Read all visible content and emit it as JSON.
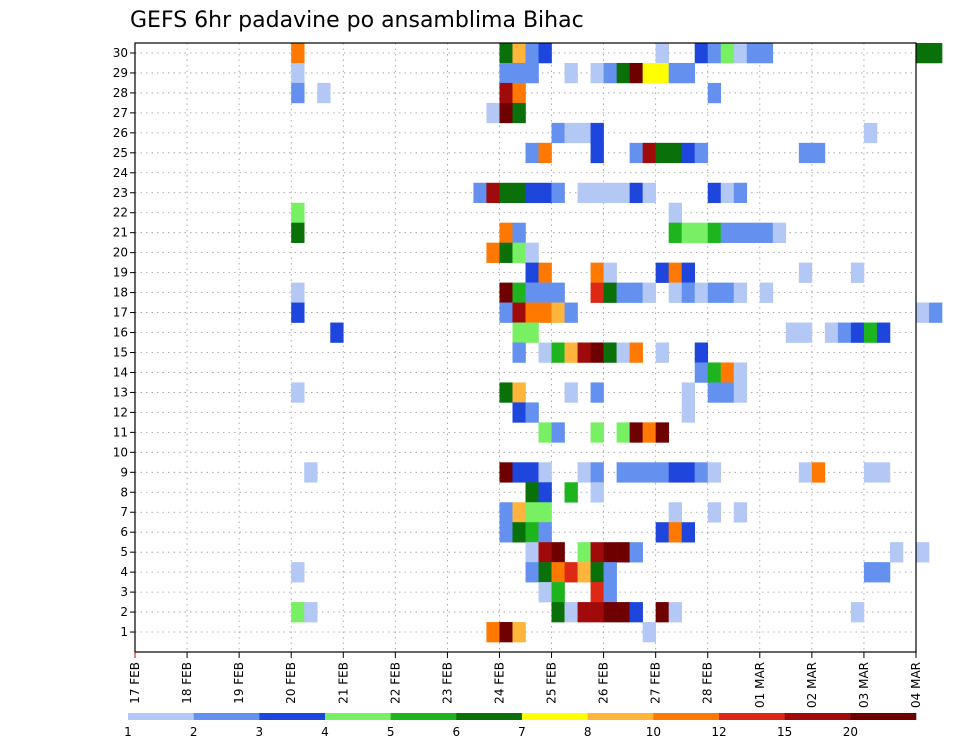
{
  "chart_data": {
    "type": "heatmap",
    "title": "GEFS 6hr padavine po ansamblima Bihac",
    "x_ticks": [
      "17 FEB",
      "18 FEB",
      "19 FEB",
      "20 FEB",
      "21 FEB",
      "22 FEB",
      "23 FEB",
      "24 FEB",
      "25 FEB",
      "26 FEB",
      "27 FEB",
      "28 FEB",
      "01 MAR",
      "02 MAR",
      "03 MAR",
      "04 MAR"
    ],
    "y_ticks": [
      "1",
      "2",
      "3",
      "4",
      "5",
      "6",
      "7",
      "8",
      "9",
      "10",
      "11",
      "12",
      "13",
      "14",
      "15",
      "16",
      "17",
      "18",
      "19",
      "20",
      "21",
      "22",
      "23",
      "24",
      "25",
      "26",
      "27",
      "28",
      "29",
      "30"
    ],
    "members_range": [
      1,
      30
    ],
    "time_step_hours": 6,
    "color_scale": {
      "labels": [
        "1",
        "2",
        "3",
        "4",
        "5",
        "6",
        "7",
        "8",
        "10",
        "12",
        "15",
        "20"
      ],
      "colors": [
        "#b4c8f5",
        "#6491f0",
        "#1e46dc",
        "#78f064",
        "#1eb41e",
        "#0a700a",
        "#ffff00",
        "#ffb43c",
        "#ff7800",
        "#dc2814",
        "#a00a0a",
        "#6e0000"
      ]
    },
    "grid": true,
    "cells": [
      [
        30,
        "20 FEB",
        0,
        10
      ],
      [
        30,
        "24 FEB",
        0,
        6
      ],
      [
        30,
        "24 FEB",
        1,
        8
      ],
      [
        30,
        "24 FEB",
        2,
        2
      ],
      [
        30,
        "24 FEB",
        3,
        3
      ],
      [
        30,
        "27 FEB",
        0,
        1
      ],
      [
        30,
        "27 FEB",
        3,
        3
      ],
      [
        30,
        "28 FEB",
        0,
        2
      ],
      [
        30,
        "28 FEB",
        1,
        4
      ],
      [
        30,
        "28 FEB",
        2,
        1
      ],
      [
        30,
        "28 FEB",
        3,
        2
      ],
      [
        30,
        "01 MAR",
        0,
        2
      ],
      [
        30,
        "04 MAR",
        0,
        6
      ],
      [
        30,
        "04 MAR",
        1,
        6
      ],
      [
        29,
        "20 FEB",
        0,
        1
      ],
      [
        29,
        "24 FEB",
        0,
        2
      ],
      [
        29,
        "24 FEB",
        1,
        2
      ],
      [
        29,
        "24 FEB",
        2,
        2
      ],
      [
        29,
        "25 FEB",
        1,
        1
      ],
      [
        29,
        "25 FEB",
        3,
        1
      ],
      [
        29,
        "26 FEB",
        0,
        2
      ],
      [
        29,
        "26 FEB",
        1,
        6
      ],
      [
        29,
        "26 FEB",
        2,
        20
      ],
      [
        29,
        "26 FEB",
        3,
        7
      ],
      [
        29,
        "27 FEB",
        0,
        7
      ],
      [
        29,
        "27 FEB",
        1,
        2
      ],
      [
        29,
        "27 FEB",
        2,
        2
      ],
      [
        28,
        "20 FEB",
        0,
        2
      ],
      [
        28,
        "20 FEB",
        2,
        1
      ],
      [
        28,
        "24 FEB",
        0,
        15
      ],
      [
        28,
        "24 FEB",
        1,
        10
      ],
      [
        28,
        "28 FEB",
        0,
        2
      ],
      [
        27,
        "23 FEB",
        3,
        1
      ],
      [
        27,
        "24 FEB",
        0,
        20
      ],
      [
        27,
        "24 FEB",
        1,
        6
      ],
      [
        26,
        "25 FEB",
        0,
        2
      ],
      [
        26,
        "25 FEB",
        1,
        1
      ],
      [
        26,
        "25 FEB",
        2,
        1
      ],
      [
        26,
        "25 FEB",
        3,
        3
      ],
      [
        26,
        "03 MAR",
        0,
        1
      ],
      [
        25,
        "24 FEB",
        2,
        2
      ],
      [
        25,
        "24 FEB",
        3,
        10
      ],
      [
        25,
        "25 FEB",
        3,
        3
      ],
      [
        25,
        "26 FEB",
        2,
        2
      ],
      [
        25,
        "26 FEB",
        3,
        15
      ],
      [
        25,
        "27 FEB",
        0,
        6
      ],
      [
        25,
        "27 FEB",
        1,
        6
      ],
      [
        25,
        "27 FEB",
        2,
        3
      ],
      [
        25,
        "27 FEB",
        3,
        2
      ],
      [
        25,
        "01 MAR",
        3,
        2
      ],
      [
        25,
        "02 MAR",
        0,
        2
      ],
      [
        23,
        "23 FEB",
        2,
        2
      ],
      [
        23,
        "23 FEB",
        3,
        15
      ],
      [
        23,
        "24 FEB",
        0,
        6
      ],
      [
        23,
        "24 FEB",
        1,
        6
      ],
      [
        23,
        "24 FEB",
        2,
        3
      ],
      [
        23,
        "24 FEB",
        3,
        3
      ],
      [
        23,
        "25 FEB",
        0,
        2
      ],
      [
        23,
        "25 FEB",
        2,
        1
      ],
      [
        23,
        "25 FEB",
        3,
        1
      ],
      [
        23,
        "26 FEB",
        0,
        1
      ],
      [
        23,
        "26 FEB",
        1,
        1
      ],
      [
        23,
        "26 FEB",
        2,
        3
      ],
      [
        23,
        "26 FEB",
        3,
        1
      ],
      [
        23,
        "28 FEB",
        0,
        3
      ],
      [
        23,
        "28 FEB",
        1,
        1
      ],
      [
        23,
        "28 FEB",
        2,
        2
      ],
      [
        22,
        "20 FEB",
        0,
        4
      ],
      [
        22,
        "27 FEB",
        1,
        1
      ],
      [
        21,
        "20 FEB",
        0,
        6
      ],
      [
        21,
        "24 FEB",
        0,
        10
      ],
      [
        21,
        "24 FEB",
        1,
        2
      ],
      [
        21,
        "27 FEB",
        1,
        5
      ],
      [
        21,
        "27 FEB",
        2,
        4
      ],
      [
        21,
        "27 FEB",
        3,
        4
      ],
      [
        21,
        "28 FEB",
        0,
        5
      ],
      [
        21,
        "28 FEB",
        1,
        2
      ],
      [
        21,
        "28 FEB",
        2,
        2
      ],
      [
        21,
        "28 FEB",
        3,
        2
      ],
      [
        21,
        "01 MAR",
        0,
        2
      ],
      [
        21,
        "01 MAR",
        1,
        1
      ],
      [
        20,
        "23 FEB",
        3,
        10
      ],
      [
        20,
        "24 FEB",
        0,
        6
      ],
      [
        20,
        "24 FEB",
        1,
        4
      ],
      [
        20,
        "24 FEB",
        2,
        1
      ],
      [
        19,
        "24 FEB",
        2,
        3
      ],
      [
        19,
        "24 FEB",
        3,
        10
      ],
      [
        19,
        "25 FEB",
        3,
        10
      ],
      [
        19,
        "26 FEB",
        0,
        1
      ],
      [
        19,
        "27 FEB",
        0,
        3
      ],
      [
        19,
        "27 FEB",
        1,
        10
      ],
      [
        19,
        "27 FEB",
        2,
        3
      ],
      [
        19,
        "01 MAR",
        3,
        1
      ],
      [
        19,
        "02 MAR",
        3,
        1
      ],
      [
        18,
        "20 FEB",
        0,
        1
      ],
      [
        18,
        "24 FEB",
        0,
        20
      ],
      [
        18,
        "24 FEB",
        1,
        5
      ],
      [
        18,
        "24 FEB",
        2,
        2
      ],
      [
        18,
        "24 FEB",
        3,
        2
      ],
      [
        18,
        "25 FEB",
        0,
        2
      ],
      [
        18,
        "25 FEB",
        3,
        12
      ],
      [
        18,
        "26 FEB",
        0,
        6
      ],
      [
        18,
        "26 FEB",
        1,
        2
      ],
      [
        18,
        "26 FEB",
        2,
        2
      ],
      [
        18,
        "26 FEB",
        3,
        1
      ],
      [
        18,
        "27 FEB",
        1,
        1
      ],
      [
        18,
        "27 FEB",
        2,
        2
      ],
      [
        18,
        "27 FEB",
        3,
        1
      ],
      [
        18,
        "28 FEB",
        0,
        2
      ],
      [
        18,
        "28 FEB",
        1,
        2
      ],
      [
        18,
        "28 FEB",
        2,
        1
      ],
      [
        18,
        "01 MAR",
        0,
        1
      ],
      [
        17,
        "20 FEB",
        0,
        3
      ],
      [
        17,
        "24 FEB",
        0,
        2
      ],
      [
        17,
        "24 FEB",
        1,
        15
      ],
      [
        17,
        "24 FEB",
        2,
        10
      ],
      [
        17,
        "24 FEB",
        3,
        10
      ],
      [
        17,
        "25 FEB",
        0,
        8
      ],
      [
        17,
        "25 FEB",
        1,
        2
      ],
      [
        17,
        "04 MAR",
        0,
        1
      ],
      [
        17,
        "04 MAR",
        1,
        2
      ],
      [
        16,
        "20 FEB",
        3,
        3
      ],
      [
        16,
        "24 FEB",
        1,
        4
      ],
      [
        16,
        "24 FEB",
        2,
        4
      ],
      [
        16,
        "01 MAR",
        2,
        1
      ],
      [
        16,
        "01 MAR",
        3,
        1
      ],
      [
        16,
        "02 MAR",
        1,
        1
      ],
      [
        16,
        "02 MAR",
        2,
        2
      ],
      [
        16,
        "02 MAR",
        3,
        3
      ],
      [
        16,
        "03 MAR",
        0,
        5
      ],
      [
        16,
        "03 MAR",
        1,
        3
      ],
      [
        15,
        "24 FEB",
        1,
        2
      ],
      [
        15,
        "24 FEB",
        3,
        1
      ],
      [
        15,
        "25 FEB",
        0,
        5
      ],
      [
        15,
        "25 FEB",
        1,
        8
      ],
      [
        15,
        "25 FEB",
        2,
        15
      ],
      [
        15,
        "25 FEB",
        3,
        20
      ],
      [
        15,
        "26 FEB",
        0,
        6
      ],
      [
        15,
        "26 FEB",
        1,
        1
      ],
      [
        15,
        "26 FEB",
        2,
        10
      ],
      [
        15,
        "27 FEB",
        0,
        1
      ],
      [
        15,
        "27 FEB",
        3,
        3
      ],
      [
        14,
        "27 FEB",
        3,
        2
      ],
      [
        14,
        "28 FEB",
        0,
        5
      ],
      [
        14,
        "28 FEB",
        1,
        10
      ],
      [
        14,
        "28 FEB",
        2,
        1
      ],
      [
        13,
        "20 FEB",
        0,
        1
      ],
      [
        13,
        "24 FEB",
        0,
        6
      ],
      [
        13,
        "24 FEB",
        1,
        8
      ],
      [
        13,
        "25 FEB",
        1,
        1
      ],
      [
        13,
        "25 FEB",
        3,
        2
      ],
      [
        13,
        "27 FEB",
        2,
        1
      ],
      [
        13,
        "28 FEB",
        0,
        2
      ],
      [
        13,
        "28 FEB",
        1,
        2
      ],
      [
        13,
        "28 FEB",
        2,
        1
      ],
      [
        12,
        "24 FEB",
        1,
        3
      ],
      [
        12,
        "24 FEB",
        2,
        2
      ],
      [
        12,
        "27 FEB",
        2,
        1
      ],
      [
        11,
        "24 FEB",
        3,
        4
      ],
      [
        11,
        "25 FEB",
        0,
        2
      ],
      [
        11,
        "25 FEB",
        3,
        4
      ],
      [
        11,
        "26 FEB",
        1,
        4
      ],
      [
        11,
        "26 FEB",
        2,
        20
      ],
      [
        11,
        "26 FEB",
        3,
        10
      ],
      [
        11,
        "27 FEB",
        0,
        20
      ],
      [
        9,
        "20 FEB",
        1,
        1
      ],
      [
        9,
        "24 FEB",
        0,
        20
      ],
      [
        9,
        "24 FEB",
        1,
        3
      ],
      [
        9,
        "24 FEB",
        2,
        3
      ],
      [
        9,
        "24 FEB",
        3,
        1
      ],
      [
        9,
        "25 FEB",
        2,
        1
      ],
      [
        9,
        "25 FEB",
        3,
        2
      ],
      [
        9,
        "26 FEB",
        1,
        2
      ],
      [
        9,
        "26 FEB",
        2,
        2
      ],
      [
        9,
        "26 FEB",
        3,
        2
      ],
      [
        9,
        "27 FEB",
        0,
        2
      ],
      [
        9,
        "27 FEB",
        1,
        3
      ],
      [
        9,
        "27 FEB",
        2,
        3
      ],
      [
        9,
        "27 FEB",
        3,
        2
      ],
      [
        9,
        "28 FEB",
        0,
        1
      ],
      [
        9,
        "01 MAR",
        3,
        1
      ],
      [
        9,
        "02 MAR",
        0,
        10
      ],
      [
        9,
        "03 MAR",
        0,
        1
      ],
      [
        9,
        "03 MAR",
        1,
        1
      ],
      [
        8,
        "24 FEB",
        2,
        6
      ],
      [
        8,
        "24 FEB",
        3,
        3
      ],
      [
        8,
        "25 FEB",
        1,
        5
      ],
      [
        8,
        "25 FEB",
        3,
        1
      ],
      [
        7,
        "24 FEB",
        0,
        2
      ],
      [
        7,
        "24 FEB",
        1,
        8
      ],
      [
        7,
        "24 FEB",
        2,
        4
      ],
      [
        7,
        "24 FEB",
        3,
        4
      ],
      [
        7,
        "27 FEB",
        1,
        1
      ],
      [
        7,
        "28 FEB",
        0,
        1
      ],
      [
        7,
        "28 FEB",
        2,
        1
      ],
      [
        6,
        "24 FEB",
        0,
        2
      ],
      [
        6,
        "24 FEB",
        1,
        6
      ],
      [
        6,
        "24 FEB",
        2,
        5
      ],
      [
        6,
        "24 FEB",
        3,
        2
      ],
      [
        6,
        "27 FEB",
        0,
        3
      ],
      [
        6,
        "27 FEB",
        1,
        10
      ],
      [
        6,
        "27 FEB",
        2,
        3
      ],
      [
        5,
        "24 FEB",
        2,
        1
      ],
      [
        5,
        "24 FEB",
        3,
        15
      ],
      [
        5,
        "25 FEB",
        0,
        20
      ],
      [
        5,
        "25 FEB",
        2,
        4
      ],
      [
        5,
        "25 FEB",
        3,
        15
      ],
      [
        5,
        "26 FEB",
        0,
        20
      ],
      [
        5,
        "26 FEB",
        1,
        20
      ],
      [
        5,
        "26 FEB",
        2,
        2
      ],
      [
        5,
        "03 MAR",
        2,
        1
      ],
      [
        5,
        "04 MAR",
        0,
        1
      ],
      [
        4,
        "20 FEB",
        0,
        1
      ],
      [
        4,
        "24 FEB",
        2,
        2
      ],
      [
        4,
        "24 FEB",
        3,
        6
      ],
      [
        4,
        "25 FEB",
        0,
        10
      ],
      [
        4,
        "25 FEB",
        1,
        12
      ],
      [
        4,
        "25 FEB",
        2,
        8
      ],
      [
        4,
        "25 FEB",
        3,
        6
      ],
      [
        4,
        "26 FEB",
        0,
        2
      ],
      [
        4,
        "03 MAR",
        0,
        2
      ],
      [
        4,
        "03 MAR",
        1,
        2
      ],
      [
        3,
        "24 FEB",
        3,
        1
      ],
      [
        3,
        "25 FEB",
        0,
        5
      ],
      [
        3,
        "25 FEB",
        3,
        12
      ],
      [
        3,
        "26 FEB",
        0,
        2
      ],
      [
        2,
        "20 FEB",
        0,
        4
      ],
      [
        2,
        "20 FEB",
        1,
        1
      ],
      [
        2,
        "25 FEB",
        0,
        6
      ],
      [
        2,
        "25 FEB",
        1,
        1
      ],
      [
        2,
        "25 FEB",
        2,
        15
      ],
      [
        2,
        "25 FEB",
        3,
        15
      ],
      [
        2,
        "26 FEB",
        0,
        20
      ],
      [
        2,
        "26 FEB",
        1,
        20
      ],
      [
        2,
        "26 FEB",
        2,
        3
      ],
      [
        2,
        "27 FEB",
        0,
        20
      ],
      [
        2,
        "27 FEB",
        1,
        1
      ],
      [
        2,
        "02 MAR",
        3,
        1
      ],
      [
        1,
        "23 FEB",
        3,
        10
      ],
      [
        1,
        "24 FEB",
        0,
        20
      ],
      [
        1,
        "24 FEB",
        1,
        8
      ],
      [
        1,
        "26 FEB",
        3,
        1
      ]
    ]
  }
}
